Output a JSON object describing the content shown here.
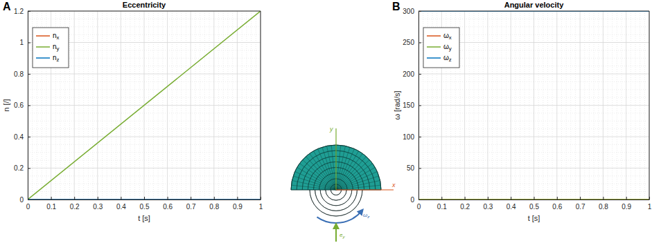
{
  "chart_data": [
    {
      "type": "line",
      "panel_label": "A",
      "title": "Eccentricity",
      "x_label": "t [s]",
      "y_label": "n [/]",
      "x": [
        0,
        1
      ],
      "series": [
        {
          "name": "nx",
          "color": "#D95319",
          "values": [
            0,
            0
          ]
        },
        {
          "name": "ny",
          "color": "#77AC30",
          "values": [
            0,
            1.2
          ]
        },
        {
          "name": "nz",
          "color": "#0072BD",
          "values": [
            0,
            0
          ]
        }
      ],
      "xlim": [
        0,
        1
      ],
      "ylim": [
        0,
        1.2
      ],
      "xticks": [
        0,
        0.1,
        0.2,
        0.3,
        0.4,
        0.5,
        0.6,
        0.7,
        0.8,
        0.9,
        1
      ],
      "yticks": [
        0,
        0.2,
        0.4,
        0.6,
        0.8,
        1,
        1.2
      ],
      "grid": true,
      "legend": "upper left"
    },
    {
      "type": "line",
      "panel_label": "B",
      "title": "Angular velocity",
      "x_label": "t [s]",
      "y_label": "ω [rad/s]",
      "x": [
        0,
        1
      ],
      "series": [
        {
          "name": "ωx",
          "color": "#D95319",
          "values": [
            0,
            0
          ]
        },
        {
          "name": "ωy",
          "color": "#77AC30",
          "values": [
            0,
            0
          ]
        },
        {
          "name": "ωz",
          "color": "#0072BD",
          "values": [
            300,
            300
          ]
        }
      ],
      "xlim": [
        0,
        1
      ],
      "ylim": [
        0,
        300
      ],
      "xticks": [
        0,
        0.1,
        0.2,
        0.3,
        0.4,
        0.5,
        0.6,
        0.7,
        0.8,
        0.9,
        1
      ],
      "yticks": [
        0,
        50,
        100,
        150,
        200,
        250,
        300
      ],
      "grid": true,
      "legend": "upper left"
    }
  ],
  "diagram": {
    "x_axis": "x",
    "y_axis": "y",
    "rotation": "ωz",
    "load": "ey"
  }
}
